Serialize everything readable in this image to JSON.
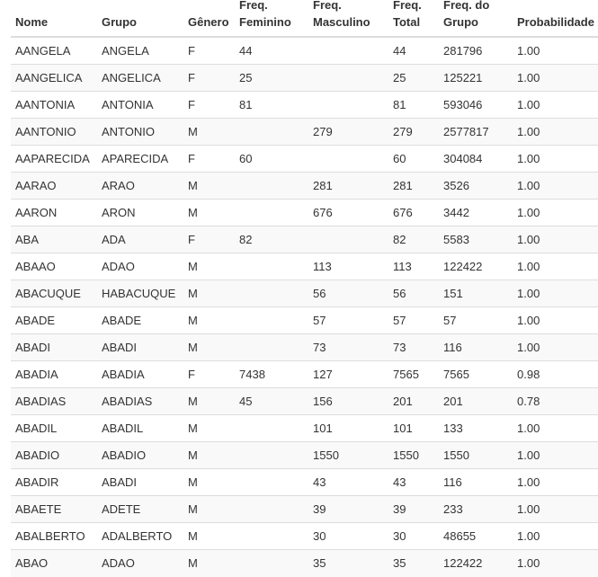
{
  "table": {
    "headers": [
      [
        "Nome"
      ],
      [
        "Grupo"
      ],
      [
        "Gênero"
      ],
      [
        "Freq.",
        "Feminino"
      ],
      [
        "Freq.",
        "Masculino"
      ],
      [
        "Freq.",
        "Total"
      ],
      [
        "Freq. do",
        "Grupo"
      ],
      [
        "Probabilidade"
      ]
    ],
    "rows": [
      [
        "AANGELA",
        "ANGELA",
        "F",
        "44",
        "",
        "44",
        "281796",
        "1.00"
      ],
      [
        "AANGELICA",
        "ANGELICA",
        "F",
        "25",
        "",
        "25",
        "125221",
        "1.00"
      ],
      [
        "AANTONIA",
        "ANTONIA",
        "F",
        "81",
        "",
        "81",
        "593046",
        "1.00"
      ],
      [
        "AANTONIO",
        "ANTONIO",
        "M",
        "",
        "279",
        "279",
        "2577817",
        "1.00"
      ],
      [
        "AAPARECIDA",
        "APARECIDA",
        "F",
        "60",
        "",
        "60",
        "304084",
        "1.00"
      ],
      [
        "AARAO",
        "ARAO",
        "M",
        "",
        "281",
        "281",
        "3526",
        "1.00"
      ],
      [
        "AARON",
        "ARON",
        "M",
        "",
        "676",
        "676",
        "3442",
        "1.00"
      ],
      [
        "ABA",
        "ADA",
        "F",
        "82",
        "",
        "82",
        "5583",
        "1.00"
      ],
      [
        "ABAAO",
        "ADAO",
        "M",
        "",
        "113",
        "113",
        "122422",
        "1.00"
      ],
      [
        "ABACUQUE",
        "HABACUQUE",
        "M",
        "",
        "56",
        "56",
        "151",
        "1.00"
      ],
      [
        "ABADE",
        "ABADE",
        "M",
        "",
        "57",
        "57",
        "57",
        "1.00"
      ],
      [
        "ABADI",
        "ABADI",
        "M",
        "",
        "73",
        "73",
        "116",
        "1.00"
      ],
      [
        "ABADIA",
        "ABADIA",
        "F",
        "7438",
        "127",
        "7565",
        "7565",
        "0.98"
      ],
      [
        "ABADIAS",
        "ABADIAS",
        "M",
        "45",
        "156",
        "201",
        "201",
        "0.78"
      ],
      [
        "ABADIL",
        "ABADIL",
        "M",
        "",
        "101",
        "101",
        "133",
        "1.00"
      ],
      [
        "ABADIO",
        "ABADIO",
        "M",
        "",
        "1550",
        "1550",
        "1550",
        "1.00"
      ],
      [
        "ABADIR",
        "ABADI",
        "M",
        "",
        "43",
        "43",
        "116",
        "1.00"
      ],
      [
        "ABAETE",
        "ADETE",
        "M",
        "",
        "39",
        "39",
        "233",
        "1.00"
      ],
      [
        "ABALBERTO",
        "ADALBERTO",
        "M",
        "",
        "30",
        "30",
        "48655",
        "1.00"
      ],
      [
        "ABAO",
        "ADAO",
        "M",
        "",
        "35",
        "35",
        "122422",
        "1.00"
      ]
    ]
  }
}
